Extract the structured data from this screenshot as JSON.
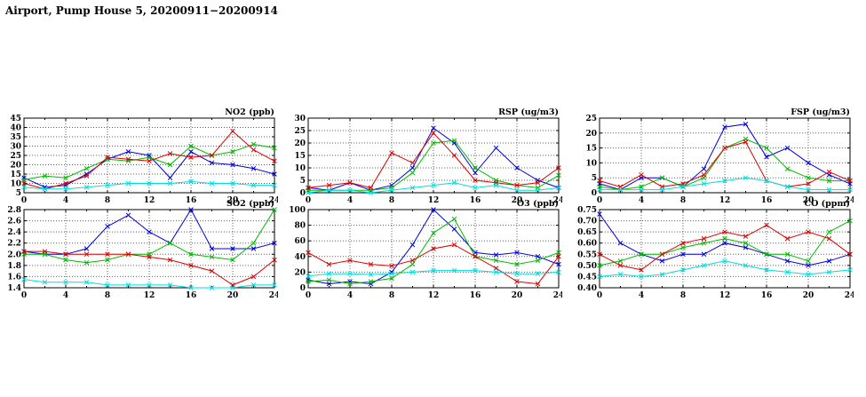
{
  "page": {
    "title": "Airport, Pump House 5, 20200911−20200914"
  },
  "style": {
    "colors": {
      "blue": "#0000dd",
      "green": "#00bb00",
      "red": "#dd0000",
      "cyan": "#00dddd"
    },
    "grid": "#606060",
    "axis": "#000000"
  },
  "chart_data": [
    {
      "type": "line",
      "title": "NO2 (ppb)",
      "xlabel": "",
      "ylabel": "",
      "x": [
        0,
        2,
        4,
        6,
        8,
        10,
        12,
        14,
        16,
        18,
        20,
        22,
        24
      ],
      "xlim": [
        0,
        24
      ],
      "xticks": [
        0,
        4,
        8,
        12,
        16,
        20,
        24
      ],
      "ylim": [
        5,
        45
      ],
      "yticks": [
        5,
        10,
        15,
        20,
        25,
        30,
        35,
        40,
        45
      ],
      "ydecimals": 0,
      "grid": true,
      "legend": "none",
      "series": [
        {
          "name": "blue",
          "color": "blue",
          "values": [
            13,
            8,
            9,
            15,
            23,
            27,
            25,
            13,
            27,
            21,
            20,
            18,
            15
          ]
        },
        {
          "name": "green",
          "color": "green",
          "values": [
            12,
            14,
            13,
            18,
            23,
            22,
            24,
            20,
            30,
            25,
            27,
            31,
            29
          ]
        },
        {
          "name": "red",
          "color": "red",
          "values": [
            10,
            7,
            10,
            14,
            24,
            23,
            22,
            26,
            24,
            25,
            38,
            28,
            22
          ]
        },
        {
          "name": "cyan",
          "color": "cyan",
          "values": [
            8,
            7,
            7,
            8,
            9,
            10,
            10,
            10,
            11,
            10,
            10,
            9,
            9
          ]
        }
      ]
    },
    {
      "type": "line",
      "title": "RSP (ug/m3)",
      "xlabel": "",
      "ylabel": "",
      "x": [
        0,
        2,
        4,
        6,
        8,
        10,
        12,
        14,
        16,
        18,
        20,
        22,
        24
      ],
      "xlim": [
        0,
        24
      ],
      "xticks": [
        0,
        4,
        8,
        12,
        16,
        20,
        24
      ],
      "ylim": [
        0,
        30
      ],
      "yticks": [
        0,
        5,
        10,
        15,
        20,
        25,
        30
      ],
      "ydecimals": 0,
      "grid": true,
      "legend": "none",
      "series": [
        {
          "name": "blue",
          "color": "blue",
          "values": [
            2,
            1,
            4,
            1,
            3,
            10,
            26,
            20,
            8,
            18,
            10,
            5,
            2
          ]
        },
        {
          "name": "green",
          "color": "green",
          "values": [
            1,
            1,
            1,
            1,
            2,
            8,
            20,
            21,
            10,
            5,
            3,
            2,
            7
          ]
        },
        {
          "name": "red",
          "color": "red",
          "values": [
            2,
            3,
            4,
            2,
            16,
            12,
            24,
            15,
            5,
            4,
            3,
            4,
            10
          ]
        },
        {
          "name": "cyan",
          "color": "cyan",
          "values": [
            0,
            1,
            1,
            0,
            1,
            2,
            3,
            4,
            2,
            3,
            1,
            1,
            2
          ]
        }
      ]
    },
    {
      "type": "line",
      "title": "FSP (ug/m3)",
      "xlabel": "",
      "ylabel": "",
      "x": [
        0,
        2,
        4,
        6,
        8,
        10,
        12,
        14,
        16,
        18,
        20,
        22,
        24
      ],
      "xlim": [
        0,
        24
      ],
      "xticks": [
        0,
        4,
        8,
        12,
        16,
        20,
        24
      ],
      "ylim": [
        0,
        25
      ],
      "yticks": [
        0,
        5,
        10,
        15,
        20,
        25
      ],
      "ydecimals": 0,
      "grid": true,
      "legend": "none",
      "series": [
        {
          "name": "blue",
          "color": "blue",
          "values": [
            3,
            1,
            5,
            5,
            2,
            8,
            22,
            23,
            12,
            15,
            10,
            6,
            3
          ]
        },
        {
          "name": "green",
          "color": "green",
          "values": [
            2,
            1,
            2,
            5,
            2,
            5,
            15,
            18,
            15,
            8,
            5,
            4,
            4
          ]
        },
        {
          "name": "red",
          "color": "red",
          "values": [
            4,
            2,
            6,
            2,
            3,
            6,
            15,
            17,
            4,
            2,
            3,
            7,
            4
          ]
        },
        {
          "name": "cyan",
          "color": "cyan",
          "values": [
            1,
            1,
            1,
            1,
            2,
            3,
            4,
            5,
            4,
            2,
            1,
            1,
            1
          ]
        }
      ]
    },
    {
      "type": "line",
      "title": "SO2 (ppb)",
      "xlabel": "",
      "ylabel": "",
      "x": [
        0,
        2,
        4,
        6,
        8,
        10,
        12,
        14,
        16,
        18,
        20,
        22,
        24
      ],
      "xlim": [
        0,
        24
      ],
      "xticks": [
        0,
        4,
        8,
        12,
        16,
        20,
        24
      ],
      "ylim": [
        1.4,
        2.8
      ],
      "yticks": [
        1.4,
        1.6,
        1.8,
        2.0,
        2.2,
        2.4,
        2.6,
        2.8
      ],
      "ydecimals": 1,
      "grid": true,
      "legend": "none",
      "series": [
        {
          "name": "blue",
          "color": "blue",
          "values": [
            2.05,
            2.0,
            2.0,
            2.1,
            2.5,
            2.7,
            2.4,
            2.2,
            2.8,
            2.1,
            2.1,
            2.1,
            2.2
          ]
        },
        {
          "name": "green",
          "color": "green",
          "values": [
            2.0,
            2.0,
            1.9,
            1.85,
            1.9,
            2.0,
            2.0,
            2.2,
            2.0,
            1.95,
            1.9,
            2.2,
            2.8
          ]
        },
        {
          "name": "red",
          "color": "red",
          "values": [
            2.05,
            2.05,
            2.0,
            2.0,
            2.0,
            2.0,
            1.95,
            1.9,
            1.8,
            1.7,
            1.45,
            1.6,
            1.9
          ]
        },
        {
          "name": "cyan",
          "color": "cyan",
          "values": [
            1.55,
            1.5,
            1.5,
            1.5,
            1.45,
            1.45,
            1.45,
            1.45,
            1.4,
            1.4,
            1.4,
            1.45,
            1.45
          ]
        }
      ]
    },
    {
      "type": "line",
      "title": "O3 (ppb)",
      "xlabel": "",
      "ylabel": "",
      "x": [
        0,
        2,
        4,
        6,
        8,
        10,
        12,
        14,
        16,
        18,
        20,
        22,
        24
      ],
      "xlim": [
        0,
        24
      ],
      "xticks": [
        0,
        4,
        8,
        12,
        16,
        20,
        24
      ],
      "ylim": [
        0,
        100
      ],
      "yticks": [
        0,
        20,
        40,
        60,
        80,
        100
      ],
      "ydecimals": 0,
      "grid": true,
      "legend": "none",
      "series": [
        {
          "name": "blue",
          "color": "blue",
          "values": [
            10,
            5,
            8,
            5,
            20,
            55,
            100,
            75,
            45,
            42,
            45,
            40,
            30
          ]
        },
        {
          "name": "green",
          "color": "green",
          "values": [
            8,
            10,
            5,
            8,
            12,
            30,
            70,
            88,
            40,
            35,
            30,
            35,
            45
          ]
        },
        {
          "name": "red",
          "color": "red",
          "values": [
            45,
            30,
            35,
            30,
            28,
            35,
            50,
            55,
            40,
            25,
            8,
            5,
            40
          ]
        },
        {
          "name": "cyan",
          "color": "cyan",
          "values": [
            15,
            18,
            18,
            17,
            18,
            20,
            22,
            22,
            22,
            20,
            18,
            18,
            20
          ]
        }
      ]
    },
    {
      "type": "line",
      "title": "CO (ppm)",
      "xlabel": "",
      "ylabel": "",
      "x": [
        0,
        2,
        4,
        6,
        8,
        10,
        12,
        14,
        16,
        18,
        20,
        22,
        24
      ],
      "xlim": [
        0,
        24
      ],
      "xticks": [
        0,
        4,
        8,
        12,
        16,
        20,
        24
      ],
      "ylim": [
        0.4,
        0.75
      ],
      "yticks": [
        0.4,
        0.45,
        0.5,
        0.55,
        0.6,
        0.65,
        0.7,
        0.75
      ],
      "ydecimals": 2,
      "grid": true,
      "legend": "none",
      "series": [
        {
          "name": "blue",
          "color": "blue",
          "values": [
            0.73,
            0.6,
            0.55,
            0.52,
            0.55,
            0.55,
            0.6,
            0.58,
            0.55,
            0.52,
            0.5,
            0.52,
            0.55
          ]
        },
        {
          "name": "green",
          "color": "green",
          "values": [
            0.5,
            0.52,
            0.55,
            0.55,
            0.58,
            0.6,
            0.62,
            0.6,
            0.55,
            0.55,
            0.52,
            0.65,
            0.7
          ]
        },
        {
          "name": "red",
          "color": "red",
          "values": [
            0.55,
            0.5,
            0.48,
            0.55,
            0.6,
            0.62,
            0.65,
            0.63,
            0.68,
            0.62,
            0.65,
            0.62,
            0.55
          ]
        },
        {
          "name": "cyan",
          "color": "cyan",
          "values": [
            0.45,
            0.46,
            0.45,
            0.46,
            0.48,
            0.5,
            0.52,
            0.5,
            0.48,
            0.47,
            0.46,
            0.47,
            0.48
          ]
        }
      ]
    }
  ]
}
